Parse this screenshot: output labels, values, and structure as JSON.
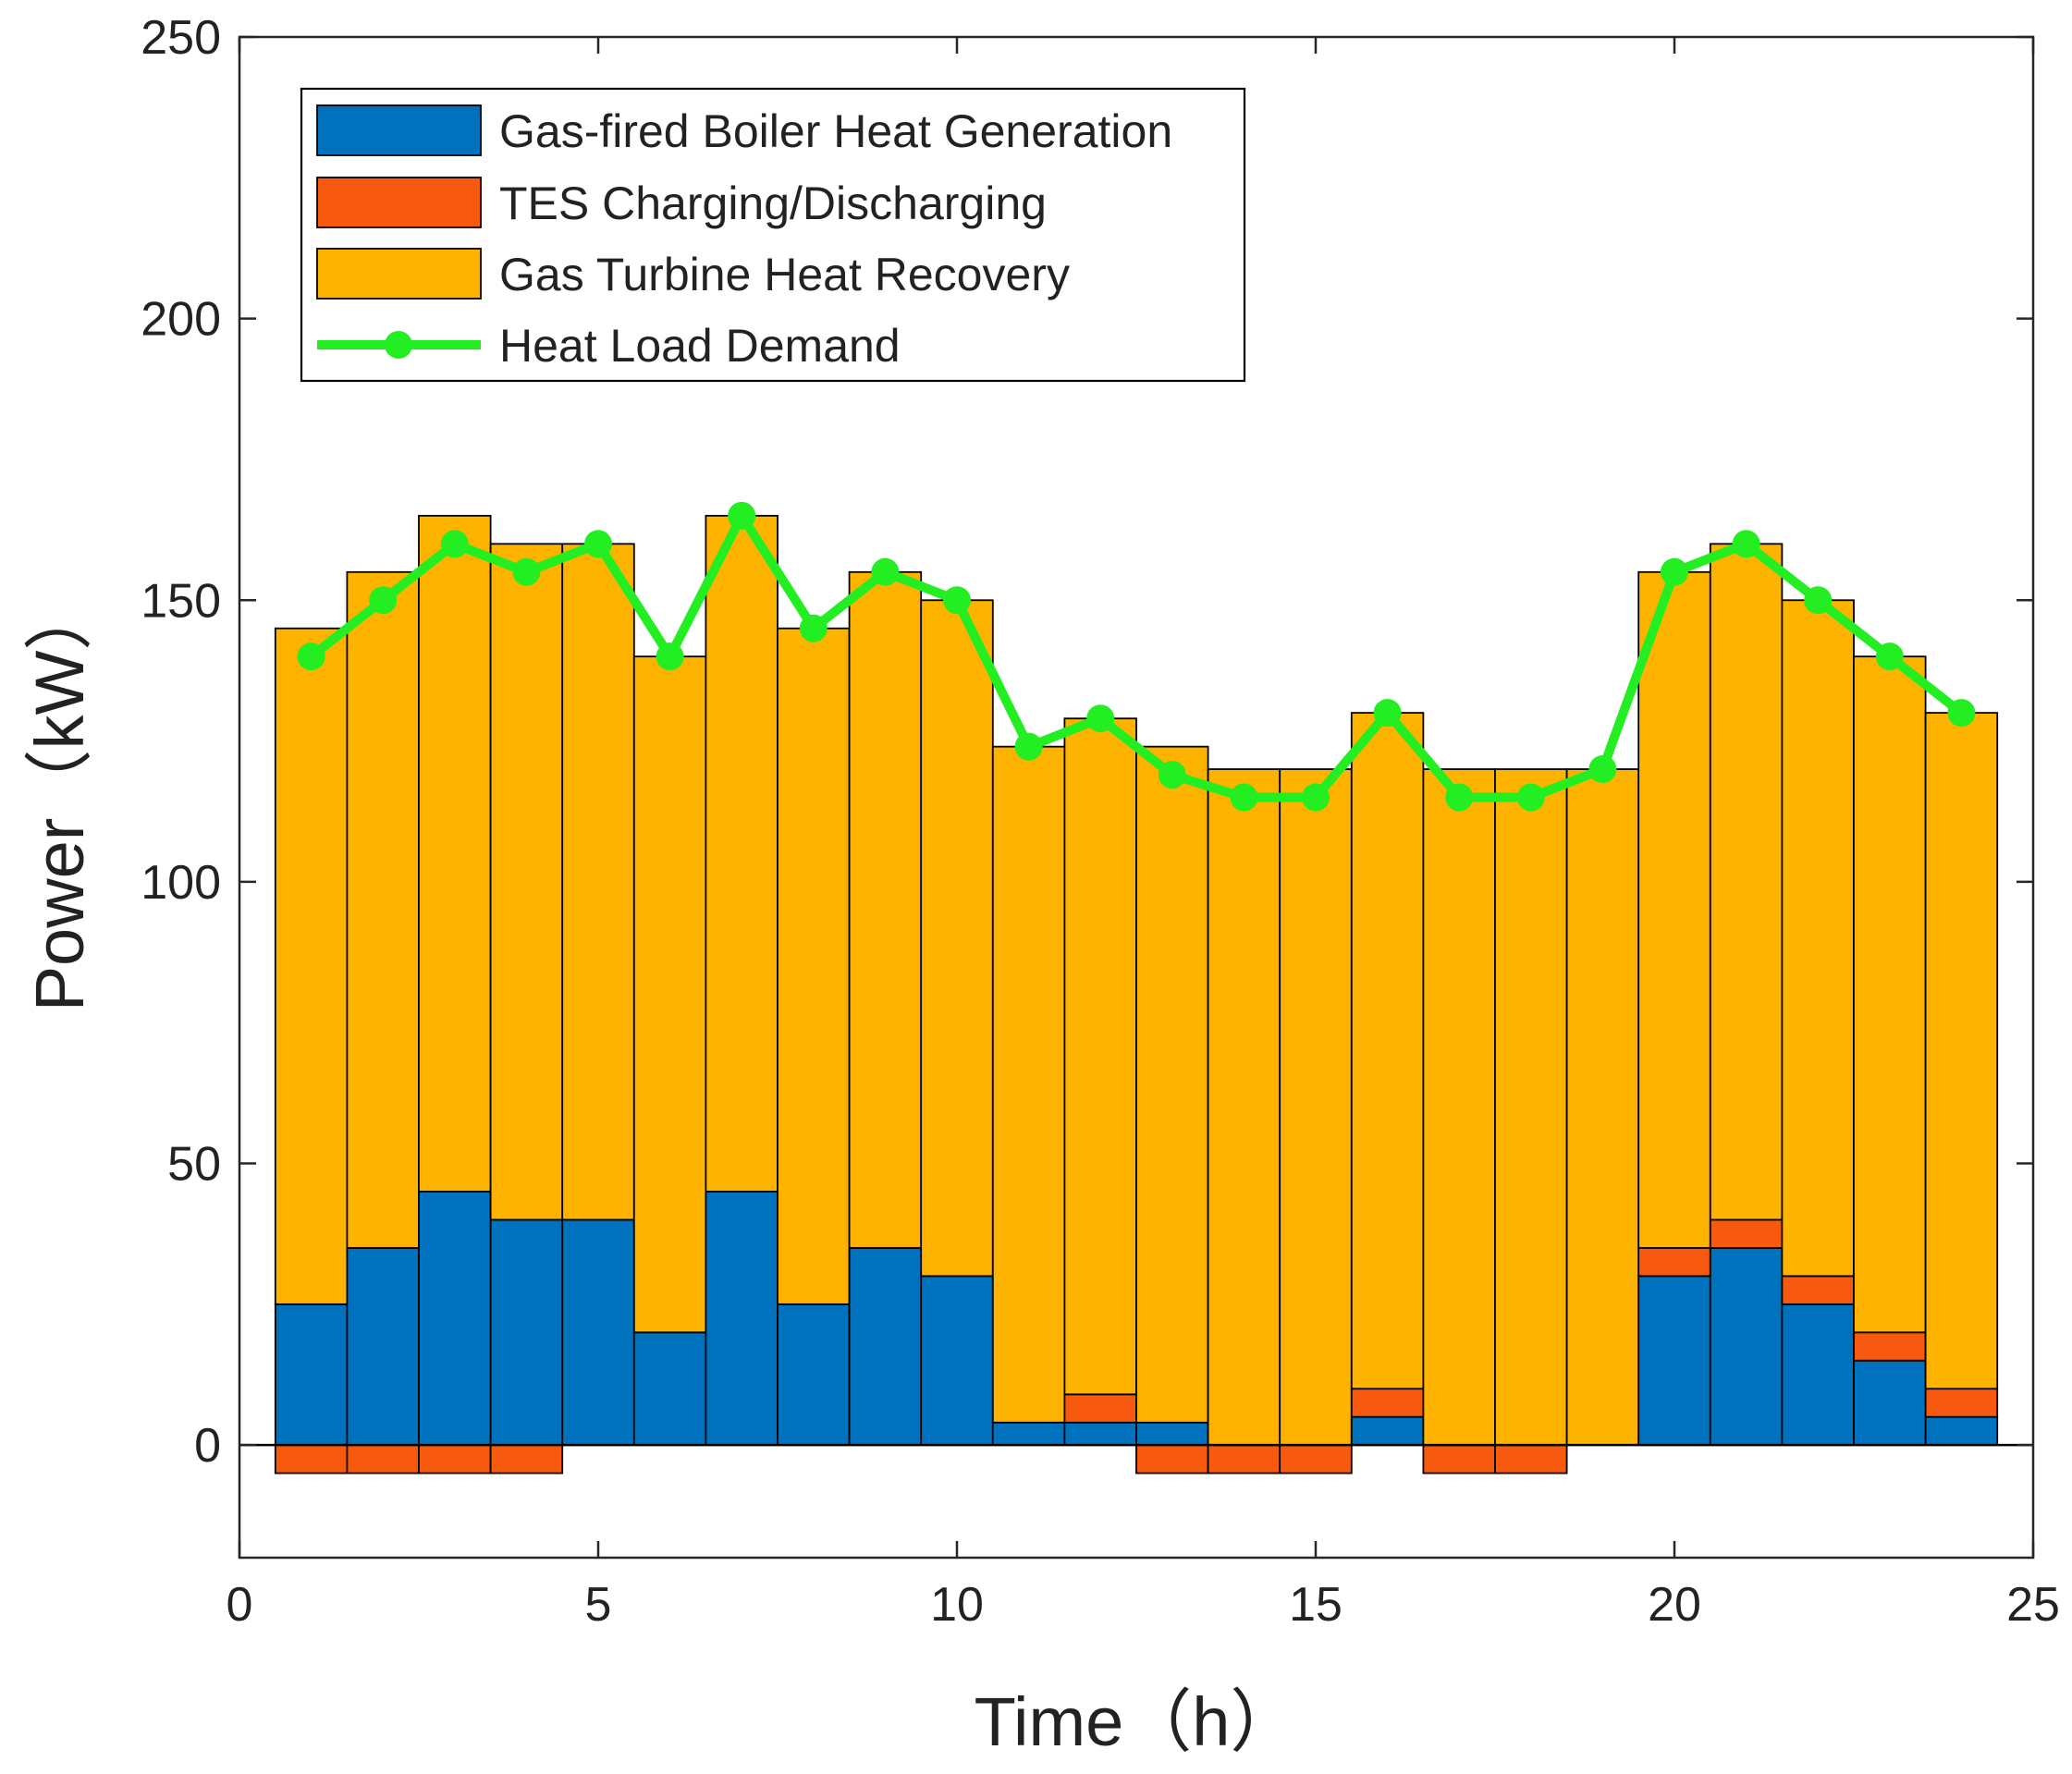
{
  "chart_data": {
    "type": "bar",
    "subtype": "stacked-bar-with-line",
    "title": "",
    "xlabel": "Time（h）",
    "ylabel": "Power（kW）",
    "xlim": [
      0,
      25
    ],
    "ylim": [
      -20,
      250
    ],
    "xticks": [
      0,
      5,
      10,
      15,
      20,
      25
    ],
    "yticks": [
      0,
      50,
      100,
      150,
      200,
      250
    ],
    "grid": false,
    "legend_position": "top-left",
    "x": [
      1,
      2,
      3,
      4,
      5,
      6,
      7,
      8,
      9,
      10,
      11,
      12,
      13,
      14,
      15,
      16,
      17,
      18,
      19,
      20,
      21,
      22,
      23,
      24
    ],
    "series": [
      {
        "name": "Gas-fired Boiler Heat Generation",
        "kind": "bar",
        "color": "#0072BD",
        "values": [
          25,
          35,
          45,
          40,
          40,
          20,
          45,
          25,
          35,
          30,
          4,
          4,
          4,
          0,
          0,
          5,
          0,
          0,
          0,
          30,
          35,
          25,
          15,
          5
        ]
      },
      {
        "name": "TES Charging/Discharging",
        "kind": "bar",
        "color": "#F75A0F",
        "values": [
          -5,
          -5,
          -5,
          -5,
          0,
          0,
          0,
          0,
          0,
          0,
          0,
          5,
          -5,
          -5,
          -5,
          5,
          -5,
          -5,
          0,
          5,
          5,
          5,
          5,
          5
        ]
      },
      {
        "name": "Gas Turbine Heat Recovery",
        "kind": "bar",
        "color": "#FDB300",
        "values": [
          120,
          120,
          120,
          120,
          120,
          120,
          120,
          120,
          120,
          120,
          120,
          120,
          120,
          120,
          120,
          120,
          120,
          120,
          120,
          120,
          120,
          120,
          120,
          120
        ]
      },
      {
        "name": "Heat Load Demand",
        "kind": "line",
        "color": "#22EE22",
        "values": [
          140,
          150,
          160,
          155,
          160,
          140,
          165,
          145,
          155,
          150,
          124,
          129,
          119,
          115,
          115,
          130,
          115,
          115,
          120,
          155,
          160,
          150,
          140,
          130
        ]
      }
    ]
  }
}
